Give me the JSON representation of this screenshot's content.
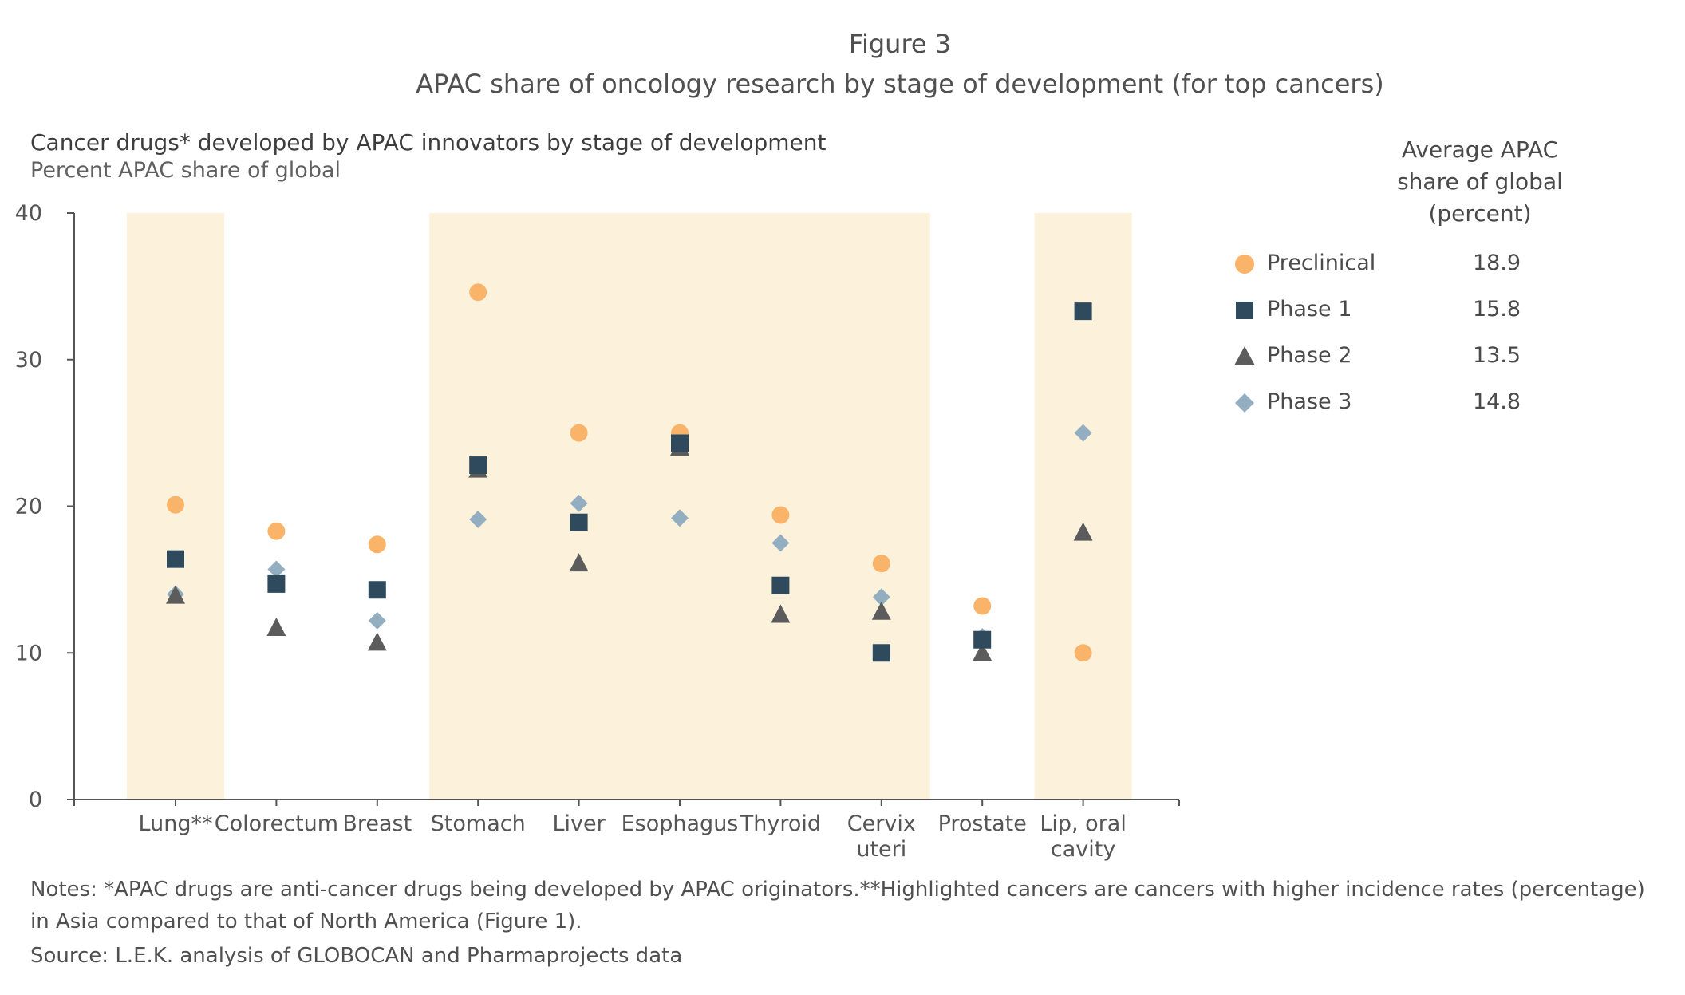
{
  "figure_label": "Figure 3",
  "title": "APAC share of oncology research by stage of development (for top cancers)",
  "subtitle": "Cancer drugs* developed by APAC innovators by stage of development",
  "unit_label": "Percent APAC share of global",
  "legend_heading": [
    "Average APAC",
    "share of global",
    "(percent)"
  ],
  "notes": "Notes: *APAC drugs are anti-cancer drugs being developed by APAC originators.**Highlighted cancers are cancers with higher incidence rates (percentage) in Asia compared to that of North America (Figure 1).",
  "source": "Source: L.E.K. analysis of GLOBOCAN and Pharmaprojects data",
  "colors": {
    "preclinical": "#f9b46a",
    "phase1": "#2f4a5c",
    "phase2": "#5c5c5c",
    "phase3": "#93aec0",
    "highlight": "#fcf2dc",
    "axis": "#555555"
  },
  "chart_data": {
    "type": "scatter",
    "categories": [
      [
        "Lung**"
      ],
      [
        "Colorectum"
      ],
      [
        "Breast"
      ],
      [
        "Stomach"
      ],
      [
        "Liver"
      ],
      [
        "Esophagus"
      ],
      [
        "Thyroid"
      ],
      [
        "Cervix",
        "uteri"
      ],
      [
        "Prostate"
      ],
      [
        "Lip, oral",
        "cavity"
      ]
    ],
    "highlighted": [
      true,
      false,
      false,
      true,
      true,
      true,
      true,
      true,
      false,
      true
    ],
    "ylim": [
      0,
      40
    ],
    "yticks": [
      0,
      10,
      20,
      30,
      40
    ],
    "grid": false,
    "legend_position": "right",
    "series": [
      {
        "name": "Preclinical",
        "marker": "circle",
        "average": "18.9",
        "values": [
          20.1,
          18.3,
          17.4,
          34.6,
          25.0,
          25.0,
          19.4,
          16.1,
          13.2,
          10.0
        ]
      },
      {
        "name": "Phase 1",
        "marker": "square",
        "average": "15.8",
        "values": [
          16.4,
          14.7,
          14.3,
          22.8,
          18.9,
          24.3,
          14.6,
          10.0,
          10.9,
          33.3
        ]
      },
      {
        "name": "Phase 2",
        "marker": "triangle",
        "average": "13.5",
        "values": [
          13.9,
          11.7,
          10.7,
          22.5,
          16.1,
          24.0,
          12.6,
          12.8,
          10.0,
          18.2
        ]
      },
      {
        "name": "Phase 3",
        "marker": "diamond",
        "average": "14.8",
        "values": [
          14.0,
          15.7,
          12.2,
          19.1,
          20.2,
          19.2,
          17.5,
          13.8,
          11.1,
          25.0
        ]
      }
    ]
  }
}
